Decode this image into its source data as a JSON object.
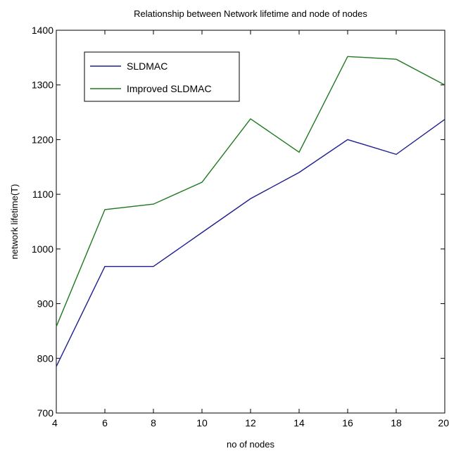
{
  "chart_data": {
    "type": "line",
    "title": "Relationship between Network lifetime and node of nodes",
    "xlabel": "no of nodes",
    "ylabel": "network lifetime(T)",
    "xlim": [
      4,
      20
    ],
    "ylim": [
      700,
      1400
    ],
    "xticks": [
      "4",
      "6",
      "8",
      "10",
      "12",
      "14",
      "16",
      "18",
      "20"
    ],
    "yticks": [
      "700",
      "800",
      "900",
      "1000",
      "1100",
      "1200",
      "1300",
      "1400"
    ],
    "x": [
      4,
      6,
      8,
      10,
      12,
      14,
      16,
      18,
      20
    ],
    "series": [
      {
        "name": "SLDMAC",
        "color": "#1f1f8f",
        "values": [
          785,
          968,
          968,
          1030,
          1092,
          1140,
          1200,
          1173,
          1237
        ]
      },
      {
        "name": "Improved SLDMAC",
        "color": "#1f7a1f",
        "values": [
          858,
          1072,
          1082,
          1122,
          1238,
          1177,
          1352,
          1347,
          1300
        ]
      }
    ],
    "legend_position": "top-left",
    "grid": false
  }
}
